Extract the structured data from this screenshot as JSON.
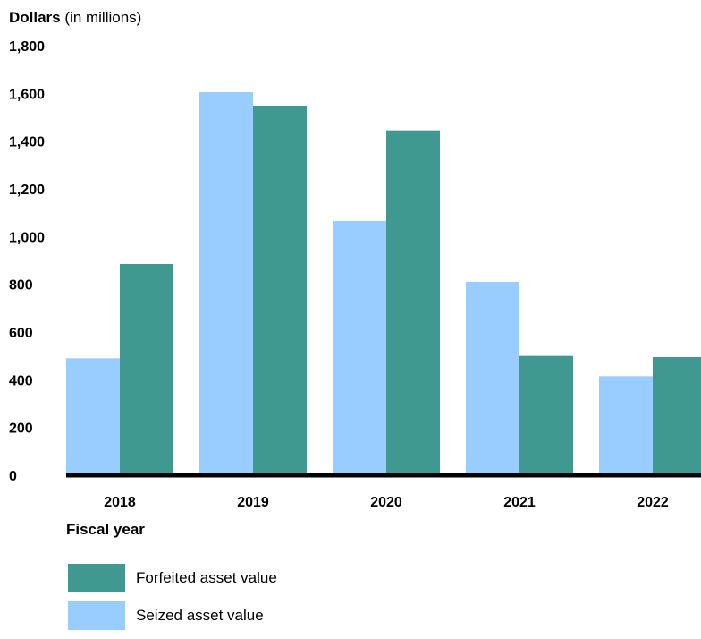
{
  "chart_data": {
    "type": "bar",
    "ylabel_bold": "Dollars",
    "ylabel_unit": "(in millions)",
    "xlabel": "Fiscal year",
    "categories": [
      "2018",
      "2019",
      "2020",
      "2021",
      "2022"
    ],
    "series": [
      {
        "name": "Seized asset value",
        "color": "#99ccff",
        "values": [
          490,
          1605,
          1065,
          810,
          415
        ]
      },
      {
        "name": "Forfeited asset value",
        "color": "#409991",
        "values": [
          885,
          1545,
          1445,
          500,
          495
        ]
      }
    ],
    "ylim": [
      0,
      1800
    ],
    "yticks": [
      "0",
      "200",
      "400",
      "600",
      "800",
      "1,000",
      "1,200",
      "1,400",
      "1,600",
      "1,800"
    ],
    "grid": false,
    "legend": "bottom-left"
  },
  "legend_items": [
    {
      "label": "Forfeited asset value",
      "color": "#409991"
    },
    {
      "label": "Seized asset value",
      "color": "#99ccff"
    }
  ]
}
